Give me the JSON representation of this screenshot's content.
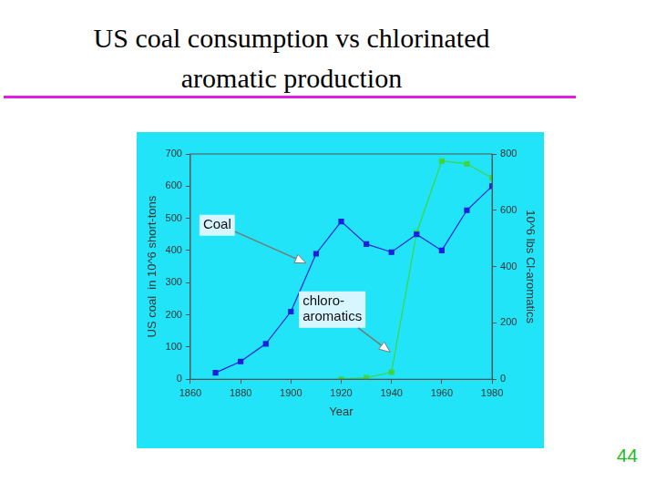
{
  "page_number": 44,
  "chart_data": {
    "type": "line",
    "title": "US coal consumption vs chlorinated aromatic production",
    "x": [
      1870,
      1880,
      1890,
      1900,
      1910,
      1920,
      1930,
      1940,
      1950,
      1960,
      1970,
      1980
    ],
    "series": [
      {
        "name": "Coal",
        "color": "#1f1fe0",
        "marker": "square",
        "line_style": "solid",
        "values": [
          20,
          55,
          110,
          210,
          390,
          490,
          420,
          395,
          450,
          400,
          525,
          600
        ]
      },
      {
        "name": "chloro-aromatics",
        "color": "#3ed63e",
        "marker": "square",
        "line_style": "solid",
        "axis": "y2",
        "values": [
          null,
          null,
          null,
          null,
          null,
          0,
          5,
          25,
          520,
          775,
          765,
          715
        ]
      }
    ],
    "x_label": "Year",
    "y_label": "US coal  in 10^6 short-tons",
    "y2_label": "10^6 lbs Cl-aromatics",
    "xlim": [
      1860,
      1980
    ],
    "xticks": [
      1860,
      1880,
      1900,
      1920,
      1940,
      1960,
      1980
    ],
    "ylim": [
      0,
      700
    ],
    "yticks": [
      0,
      100,
      200,
      300,
      400,
      500,
      600,
      700
    ],
    "y2lim": [
      0,
      800
    ],
    "y2ticks": [
      0,
      200,
      400,
      600,
      800
    ],
    "grid": false
  }
}
